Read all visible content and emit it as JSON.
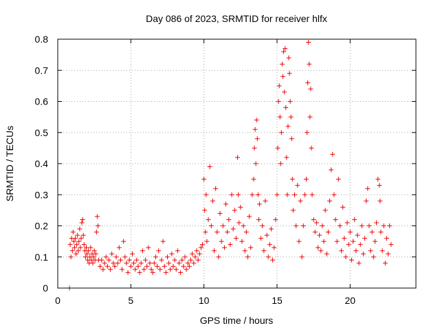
{
  "chart_data": {
    "type": "scatter",
    "title": "Day 086 of 2023, SRMTID for receiver hlfx",
    "xlabel": "GPS time / hours",
    "ylabel": "SRMTID / TECUs",
    "xlim": [
      0,
      24.5
    ],
    "ylim": [
      0,
      0.8
    ],
    "x_ticks": [
      0,
      5,
      10,
      15,
      20
    ],
    "y_ticks": [
      0,
      0.1,
      0.2,
      0.3,
      0.4,
      0.5,
      0.6,
      0.7,
      0.8
    ],
    "x_tick_labels": [
      "0",
      "5",
      "10",
      "15",
      "20"
    ],
    "y_tick_labels": [
      "0",
      "0.1",
      "0.2",
      "0.3",
      "0.4",
      "0.5",
      "0.6",
      "0.7",
      "0.8"
    ],
    "grid": true,
    "marker": "plus",
    "color": "#ee0000",
    "series": [
      {
        "name": "SRMTID",
        "points": [
          [
            0.8,
            0.0
          ],
          [
            0.85,
            0.14
          ],
          [
            0.9,
            0.1
          ],
          [
            0.95,
            0.16
          ],
          [
            1.0,
            0.12
          ],
          [
            1.05,
            0.18
          ],
          [
            1.1,
            0.15
          ],
          [
            1.15,
            0.13
          ],
          [
            1.2,
            0.16
          ],
          [
            1.25,
            0.11
          ],
          [
            1.3,
            0.14
          ],
          [
            1.35,
            0.17
          ],
          [
            1.4,
            0.12
          ],
          [
            1.45,
            0.15
          ],
          [
            1.5,
            0.19
          ],
          [
            1.55,
            0.13
          ],
          [
            1.6,
            0.16
          ],
          [
            1.65,
            0.21
          ],
          [
            1.7,
            0.22
          ],
          [
            1.75,
            0.17
          ],
          [
            1.8,
            0.14
          ],
          [
            1.85,
            0.12
          ],
          [
            1.9,
            0.1
          ],
          [
            1.95,
            0.13
          ],
          [
            2.0,
            0.11
          ],
          [
            2.05,
            0.09
          ],
          [
            2.1,
            0.12
          ],
          [
            2.15,
            0.08
          ],
          [
            2.2,
            0.1
          ],
          [
            2.25,
            0.13
          ],
          [
            2.3,
            0.09
          ],
          [
            2.35,
            0.11
          ],
          [
            2.4,
            0.08
          ],
          [
            2.45,
            0.1
          ],
          [
            2.5,
            0.12
          ],
          [
            2.55,
            0.09
          ],
          [
            2.6,
            0.11
          ],
          [
            2.65,
            0.18
          ],
          [
            2.7,
            0.23
          ],
          [
            2.75,
            0.2
          ],
          [
            2.8,
            0.09
          ],
          [
            2.9,
            0.07
          ],
          [
            3.0,
            0.09
          ],
          [
            3.1,
            0.06
          ],
          [
            3.2,
            0.08
          ],
          [
            3.3,
            0.1
          ],
          [
            3.4,
            0.07
          ],
          [
            3.5,
            0.09
          ],
          [
            3.6,
            0.06
          ],
          [
            3.7,
            0.11
          ],
          [
            3.8,
            0.08
          ],
          [
            3.9,
            0.07
          ],
          [
            4.0,
            0.1
          ],
          [
            4.1,
            0.08
          ],
          [
            4.2,
            0.13
          ],
          [
            4.3,
            0.09
          ],
          [
            4.4,
            0.06
          ],
          [
            4.5,
            0.15
          ],
          [
            4.6,
            0.1
          ],
          [
            4.7,
            0.08
          ],
          [
            4.8,
            0.05
          ],
          [
            4.9,
            0.09
          ],
          [
            5.0,
            0.07
          ],
          [
            5.1,
            0.11
          ],
          [
            5.2,
            0.08
          ],
          [
            5.3,
            0.06
          ],
          [
            5.4,
            0.09
          ],
          [
            5.5,
            0.07
          ],
          [
            5.6,
            0.05
          ],
          [
            5.7,
            0.08
          ],
          [
            5.8,
            0.12
          ],
          [
            5.9,
            0.06
          ],
          [
            6.0,
            0.09
          ],
          [
            6.1,
            0.07
          ],
          [
            6.2,
            0.13
          ],
          [
            6.3,
            0.08
          ],
          [
            6.4,
            0.06
          ],
          [
            6.5,
            0.05
          ],
          [
            6.6,
            0.08
          ],
          [
            6.7,
            0.1
          ],
          [
            6.8,
            0.07
          ],
          [
            6.9,
            0.12
          ],
          [
            7.0,
            0.06
          ],
          [
            7.1,
            0.09
          ],
          [
            7.2,
            0.15
          ],
          [
            7.3,
            0.07
          ],
          [
            7.4,
            0.05
          ],
          [
            7.5,
            0.1
          ],
          [
            7.6,
            0.08
          ],
          [
            7.7,
            0.06
          ],
          [
            7.8,
            0.11
          ],
          [
            7.9,
            0.07
          ],
          [
            8.0,
            0.09
          ],
          [
            8.1,
            0.06
          ],
          [
            8.2,
            0.12
          ],
          [
            8.3,
            0.08
          ],
          [
            8.4,
            0.05
          ],
          [
            8.5,
            0.09
          ],
          [
            8.6,
            0.07
          ],
          [
            8.7,
            0.1
          ],
          [
            8.8,
            0.06
          ],
          [
            8.9,
            0.08
          ],
          [
            9.0,
            0.07
          ],
          [
            9.1,
            0.09
          ],
          [
            9.2,
            0.11
          ],
          [
            9.3,
            0.08
          ],
          [
            9.4,
            0.1
          ],
          [
            9.5,
            0.12
          ],
          [
            9.6,
            0.09
          ],
          [
            9.7,
            0.11
          ],
          [
            9.8,
            0.13
          ],
          [
            9.9,
            0.14
          ],
          [
            10.0,
            0.35
          ],
          [
            10.05,
            0.25
          ],
          [
            10.1,
            0.18
          ],
          [
            10.15,
            0.3
          ],
          [
            10.2,
            0.15
          ],
          [
            10.3,
            0.22
          ],
          [
            10.4,
            0.39
          ],
          [
            10.5,
            0.2
          ],
          [
            10.6,
            0.28
          ],
          [
            10.7,
            0.12
          ],
          [
            10.8,
            0.32
          ],
          [
            10.9,
            0.18
          ],
          [
            11.0,
            0.1
          ],
          [
            11.1,
            0.24
          ],
          [
            11.2,
            0.15
          ],
          [
            11.3,
            0.2
          ],
          [
            11.4,
            0.13
          ],
          [
            11.5,
            0.27
          ],
          [
            11.6,
            0.18
          ],
          [
            11.7,
            0.22
          ],
          [
            11.8,
            0.14
          ],
          [
            11.9,
            0.3
          ],
          [
            12.0,
            0.19
          ],
          [
            12.1,
            0.25
          ],
          [
            12.2,
            0.16
          ],
          [
            12.3,
            0.42
          ],
          [
            12.35,
            0.3
          ],
          [
            12.4,
            0.21
          ],
          [
            12.5,
            0.26
          ],
          [
            12.6,
            0.15
          ],
          [
            12.7,
            0.2
          ],
          [
            12.8,
            0.12
          ],
          [
            12.9,
            0.18
          ],
          [
            13.0,
            0.1
          ],
          [
            13.1,
            0.23
          ],
          [
            13.2,
            0.13
          ],
          [
            13.3,
            0.3
          ],
          [
            13.4,
            0.35
          ],
          [
            13.45,
            0.45
          ],
          [
            13.5,
            0.51
          ],
          [
            13.55,
            0.4
          ],
          [
            13.6,
            0.54
          ],
          [
            13.65,
            0.48
          ],
          [
            13.7,
            0.3
          ],
          [
            13.75,
            0.22
          ],
          [
            13.8,
            0.27
          ],
          [
            13.9,
            0.16
          ],
          [
            14.0,
            0.2
          ],
          [
            14.1,
            0.12
          ],
          [
            14.2,
            0.28
          ],
          [
            14.3,
            0.17
          ],
          [
            14.4,
            0.1
          ],
          [
            14.5,
            0.14
          ],
          [
            14.6,
            0.19
          ],
          [
            14.7,
            0.09
          ],
          [
            14.8,
            0.13
          ],
          [
            14.9,
            0.22
          ],
          [
            15.0,
            0.3
          ],
          [
            15.05,
            0.45
          ],
          [
            15.1,
            0.6
          ],
          [
            15.15,
            0.65
          ],
          [
            15.2,
            0.55
          ],
          [
            15.25,
            0.4
          ],
          [
            15.3,
            0.5
          ],
          [
            15.35,
            0.72
          ],
          [
            15.4,
            0.68
          ],
          [
            15.45,
            0.76
          ],
          [
            15.5,
            0.63
          ],
          [
            15.55,
            0.77
          ],
          [
            15.6,
            0.58
          ],
          [
            15.65,
            0.42
          ],
          [
            15.7,
            0.3
          ],
          [
            15.75,
            0.52
          ],
          [
            15.8,
            0.74
          ],
          [
            15.85,
            0.69
          ],
          [
            15.9,
            0.6
          ],
          [
            15.95,
            0.55
          ],
          [
            16.0,
            0.48
          ],
          [
            16.05,
            0.35
          ],
          [
            16.1,
            0.25
          ],
          [
            16.2,
            0.3
          ],
          [
            16.3,
            0.2
          ],
          [
            16.4,
            0.33
          ],
          [
            16.5,
            0.15
          ],
          [
            16.6,
            0.28
          ],
          [
            16.7,
            0.1
          ],
          [
            16.8,
            0.2
          ],
          [
            16.9,
            0.3
          ],
          [
            17.0,
            0.35
          ],
          [
            17.05,
            0.5
          ],
          [
            17.1,
            0.66
          ],
          [
            17.15,
            0.79
          ],
          [
            17.2,
            0.72
          ],
          [
            17.25,
            0.55
          ],
          [
            17.3,
            0.64
          ],
          [
            17.35,
            0.45
          ],
          [
            17.4,
            0.3
          ],
          [
            17.5,
            0.22
          ],
          [
            17.6,
            0.18
          ],
          [
            17.7,
            0.21
          ],
          [
            17.8,
            0.13
          ],
          [
            17.9,
            0.17
          ],
          [
            18.0,
            0.12
          ],
          [
            18.1,
            0.2
          ],
          [
            18.2,
            0.15
          ],
          [
            18.3,
            0.25
          ],
          [
            18.4,
            0.11
          ],
          [
            18.5,
            0.18
          ],
          [
            18.6,
            0.28
          ],
          [
            18.7,
            0.38
          ],
          [
            18.8,
            0.43
          ],
          [
            18.9,
            0.3
          ],
          [
            19.0,
            0.22
          ],
          [
            19.1,
            0.15
          ],
          [
            19.2,
            0.35
          ],
          [
            19.3,
            0.2
          ],
          [
            19.4,
            0.12
          ],
          [
            19.5,
            0.26
          ],
          [
            19.6,
            0.16
          ],
          [
            19.7,
            0.1
          ],
          [
            19.8,
            0.21
          ],
          [
            19.9,
            0.14
          ],
          [
            20.0,
            0.18
          ],
          [
            20.1,
            0.09
          ],
          [
            20.2,
            0.15
          ],
          [
            20.3,
            0.22
          ],
          [
            20.4,
            0.12
          ],
          [
            20.5,
            0.17
          ],
          [
            20.6,
            0.08
          ],
          [
            20.7,
            0.14
          ],
          [
            20.8,
            0.2
          ],
          [
            20.9,
            0.11
          ],
          [
            21.0,
            0.16
          ],
          [
            21.1,
            0.28
          ],
          [
            21.2,
            0.32
          ],
          [
            21.3,
            0.2
          ],
          [
            21.4,
            0.12
          ],
          [
            21.5,
            0.18
          ],
          [
            21.6,
            0.1
          ],
          [
            21.7,
            0.15
          ],
          [
            21.8,
            0.21
          ],
          [
            21.9,
            0.35
          ],
          [
            22.0,
            0.33
          ],
          [
            22.05,
            0.28
          ],
          [
            22.1,
            0.18
          ],
          [
            22.2,
            0.12
          ],
          [
            22.3,
            0.2
          ],
          [
            22.4,
            0.08
          ],
          [
            22.5,
            0.16
          ],
          [
            22.6,
            0.11
          ],
          [
            22.7,
            0.2
          ],
          [
            22.8,
            0.14
          ]
        ]
      }
    ]
  }
}
